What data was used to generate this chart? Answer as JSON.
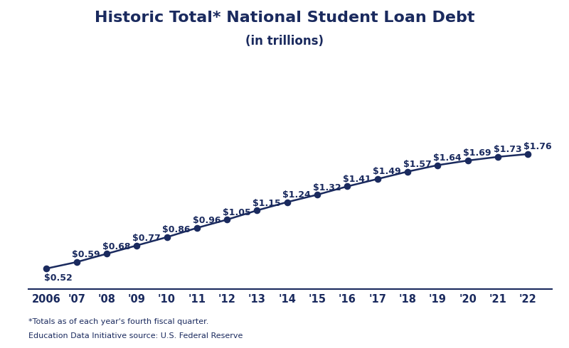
{
  "title_line1": "Historic Total* National Student Loan Debt",
  "title_line2": "(in trillions)",
  "footnote1": "*Totals as of each year's fourth fiscal quarter.",
  "footnote2": "Education Data Initiative source: U.S. Federal Reserve",
  "years": [
    2006,
    2007,
    2008,
    2009,
    2010,
    2011,
    2012,
    2013,
    2014,
    2015,
    2016,
    2017,
    2018,
    2019,
    2020,
    2021,
    2022
  ],
  "values": [
    0.52,
    0.59,
    0.68,
    0.77,
    0.86,
    0.96,
    1.05,
    1.15,
    1.24,
    1.32,
    1.41,
    1.49,
    1.57,
    1.64,
    1.69,
    1.73,
    1.76
  ],
  "x_labels": [
    "2006",
    "'07",
    "'08",
    "'09",
    "'10",
    "'11",
    "'12",
    "'13",
    "'14",
    "'15",
    "'16",
    "'17",
    "'18",
    "'19",
    "'20",
    "'21",
    "'22"
  ],
  "line_color": "#1a2a5e",
  "marker_color": "#1a2a5e",
  "background_color": "#ffffff",
  "title_color": "#1a2a5e",
  "label_color": "#1a2a5e",
  "footnote_color": "#1a2a5e",
  "tick_color": "#1a2a5e",
  "title_fontsize": 16,
  "subtitle_fontsize": 12,
  "label_fontsize": 9,
  "footnote_fontsize": 8,
  "tick_fontsize": 10.5,
  "ylim_bottom": 0.3,
  "ylim_top": 2.6,
  "xlim_left": 2005.4,
  "xlim_right": 2022.8
}
